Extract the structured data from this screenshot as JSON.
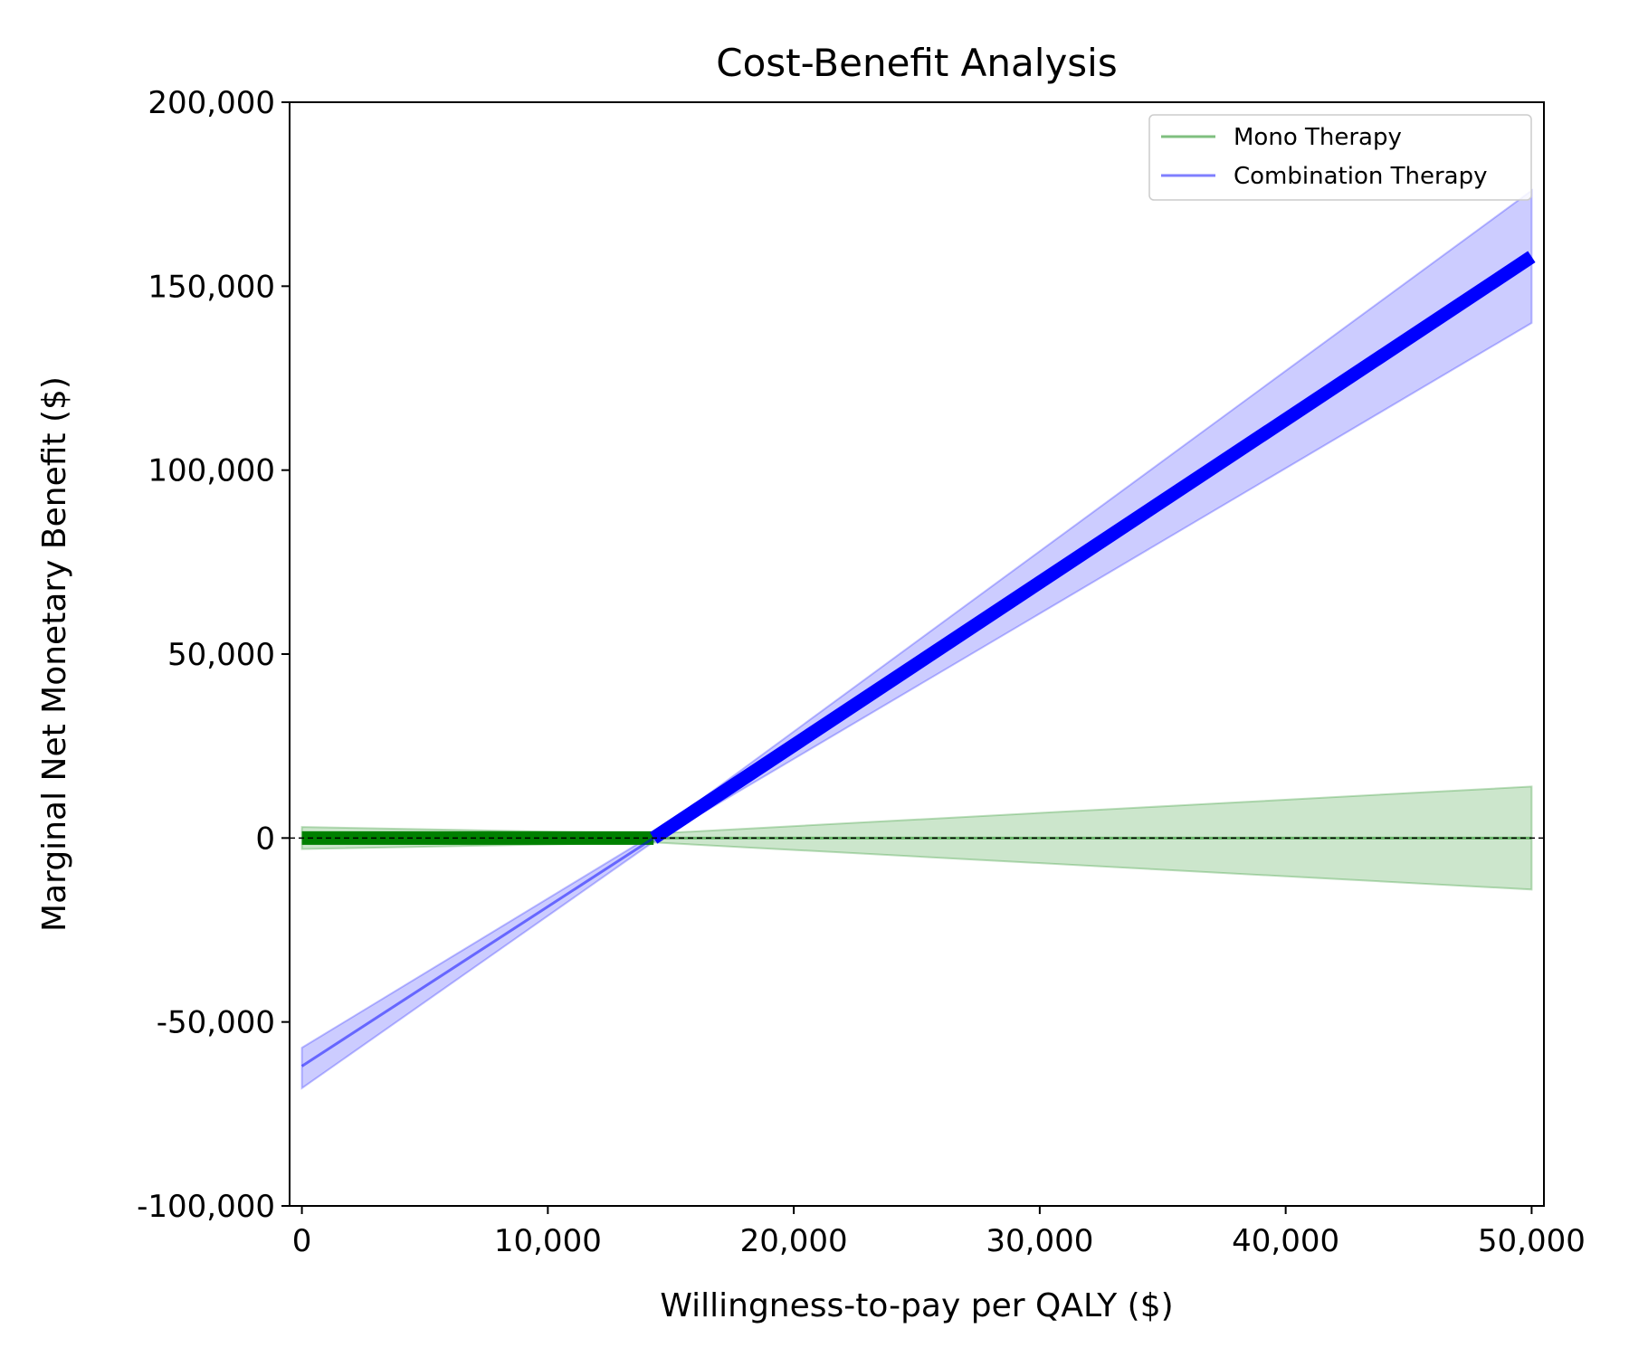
{
  "chart_data": {
    "type": "line",
    "title": "Cost-Benefit Analysis",
    "xlabel": "Willingness-to-pay per QALY ($)",
    "ylabel": "Marginal Net Monetary Benefit ($)",
    "xlim": [
      -500,
      50500
    ],
    "ylim": [
      -100000,
      200000
    ],
    "x_ticks": [
      0,
      10000,
      20000,
      30000,
      40000,
      50000
    ],
    "x_tick_labels": [
      "0",
      "10,000",
      "20,000",
      "30,000",
      "40,000",
      "50,000"
    ],
    "y_ticks": [
      -100000,
      -50000,
      0,
      50000,
      100000,
      150000,
      200000
    ],
    "y_tick_labels": [
      "-100,000",
      "-50,000",
      "0",
      "50,000",
      "100,000",
      "150,000",
      "200,000"
    ],
    "reference_line": {
      "y": 0,
      "style": "dashed",
      "color": "#000000"
    },
    "legend_position": "top-right",
    "grid": false,
    "series": [
      {
        "name": "Mono Therapy",
        "color": "#008000",
        "x": [
          0,
          14300,
          50000
        ],
        "y": [
          0,
          0,
          0
        ],
        "ci_lower": [
          -3000,
          -1200,
          -14000
        ],
        "ci_upper": [
          3000,
          1200,
          14000
        ],
        "optimal_range": [
          0,
          14300
        ]
      },
      {
        "name": "Combination Therapy",
        "color": "#0000ff",
        "x": [
          0,
          14300,
          50000
        ],
        "y": [
          -62000,
          0,
          158000
        ],
        "ci_lower": [
          -68000,
          -1000,
          140000
        ],
        "ci_upper": [
          -57000,
          1000,
          176000
        ],
        "optimal_range": [
          14300,
          50000
        ]
      }
    ]
  }
}
